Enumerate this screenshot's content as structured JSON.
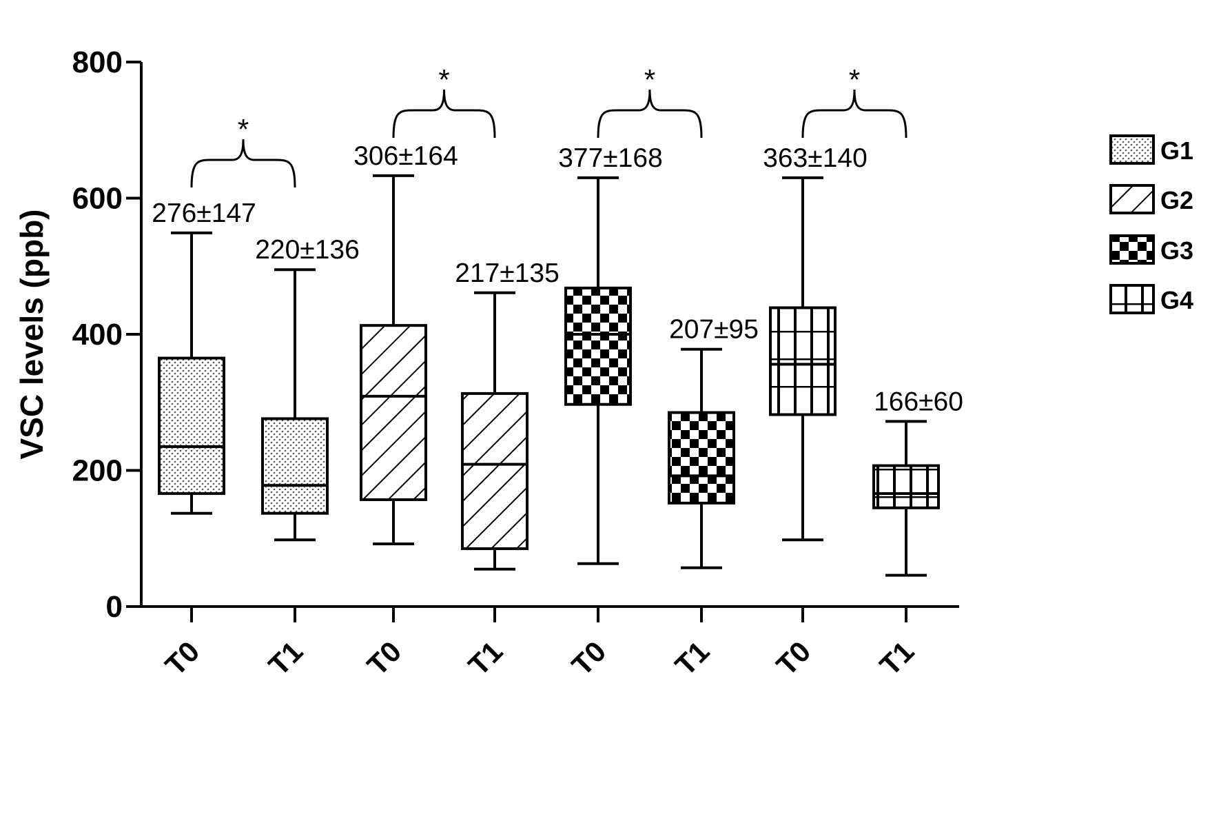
{
  "chart_data": {
    "type": "box",
    "ylabel": "VSC levels (ppb)",
    "ylim": [
      0,
      800
    ],
    "yticks": [
      0,
      200,
      400,
      600,
      800
    ],
    "legend_position": "right",
    "groups": [
      {
        "name": "G1",
        "pattern": "dots"
      },
      {
        "name": "G2",
        "pattern": "diagonal"
      },
      {
        "name": "G3",
        "pattern": "checker"
      },
      {
        "name": "G4",
        "pattern": "vertical"
      }
    ],
    "boxes": [
      {
        "group": "G1",
        "time": "T0",
        "min": 137,
        "q1": 166,
        "median": 235,
        "q3": 365,
        "max": 549,
        "label": "276±147"
      },
      {
        "group": "G1",
        "time": "T1",
        "min": 98,
        "q1": 137,
        "median": 178,
        "q3": 276,
        "max": 495,
        "label": "220±136"
      },
      {
        "group": "G2",
        "time": "T0",
        "min": 92,
        "q1": 157,
        "median": 309,
        "q3": 413,
        "max": 633,
        "label": "306±164"
      },
      {
        "group": "G2",
        "time": "T1",
        "min": 55,
        "q1": 85,
        "median": 209,
        "q3": 313,
        "max": 461,
        "label": "217±135"
      },
      {
        "group": "G3",
        "time": "T0",
        "min": 63,
        "q1": 297,
        "median": 400,
        "q3": 468,
        "max": 630,
        "label": "377±168"
      },
      {
        "group": "G3",
        "time": "T1",
        "min": 57,
        "q1": 152,
        "median": 192,
        "q3": 285,
        "max": 378,
        "label": "207±95"
      },
      {
        "group": "G4",
        "time": "T0",
        "min": 98,
        "q1": 282,
        "median": 356,
        "q3": 439,
        "max": 630,
        "label": "363±140"
      },
      {
        "group": "G4",
        "time": "T1",
        "min": 46,
        "q1": 145,
        "median": 166,
        "q3": 207,
        "max": 272,
        "label": "166±60"
      }
    ],
    "significance": [
      {
        "group": "G1",
        "label": "*"
      },
      {
        "group": "G2",
        "label": "*"
      },
      {
        "group": "G3",
        "label": "*"
      },
      {
        "group": "G4",
        "label": "*"
      }
    ]
  }
}
